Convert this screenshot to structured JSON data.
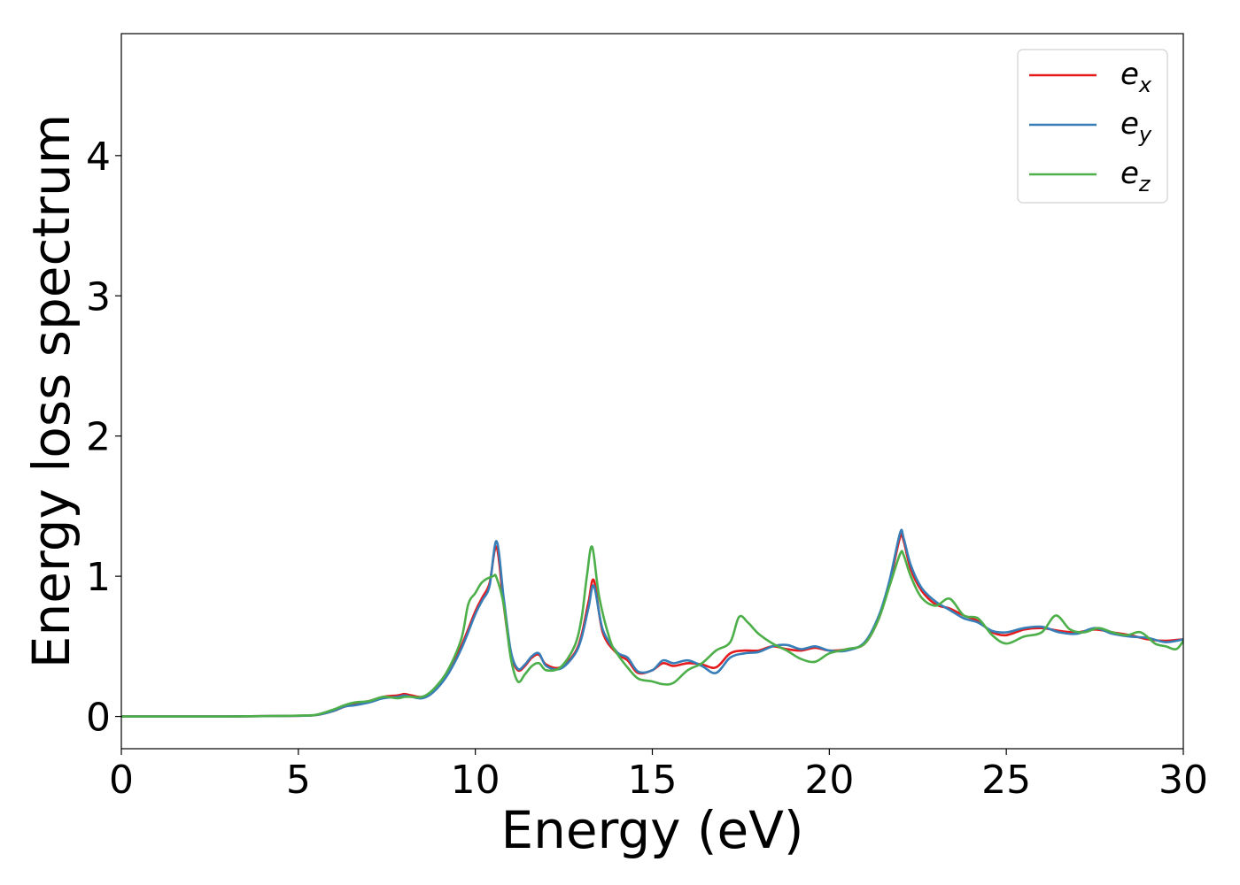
{
  "chart_data": {
    "type": "line",
    "title": "",
    "xlabel": "Energy (eV)",
    "ylabel": "Energy loss spectrum",
    "xlim": [
      0,
      30
    ],
    "ylim": [
      -0.23,
      4.87
    ],
    "xticks": [
      "0",
      "5",
      "10",
      "15",
      "20",
      "25",
      "30"
    ],
    "yticks": [
      "0",
      "1",
      "2",
      "3",
      "4"
    ],
    "grid": false,
    "legend_position": "top-right",
    "series": [
      {
        "name": "e",
        "subscript": "x",
        "color": "#e41a1c",
        "x": [
          0,
          1,
          2,
          3,
          4,
          5,
          5.5,
          6,
          6.3,
          6.6,
          7,
          7.4,
          7.8,
          8.0,
          8.2,
          8.5,
          8.8,
          9.2,
          9.6,
          10.0,
          10.2,
          10.4,
          10.6,
          10.8,
          11.0,
          11.2,
          11.4,
          11.6,
          11.8,
          12.0,
          12.4,
          12.8,
          13.0,
          13.2,
          13.35,
          13.6,
          14.0,
          14.3,
          14.6,
          15.0,
          15.3,
          15.6,
          16.0,
          16.4,
          16.8,
          17.2,
          17.6,
          18.0,
          18.4,
          18.8,
          19.2,
          19.6,
          20.0,
          20.5,
          21.0,
          21.4,
          21.7,
          22.0,
          22.1,
          22.3,
          22.6,
          23.0,
          23.4,
          23.8,
          24.2,
          24.6,
          25.0,
          25.5,
          26.0,
          26.5,
          27.0,
          27.5,
          28.0,
          28.5,
          29.0,
          29.5,
          30.0
        ],
        "y": [
          0,
          0,
          0,
          0,
          0.002,
          0.005,
          0.01,
          0.04,
          0.07,
          0.09,
          0.11,
          0.14,
          0.15,
          0.16,
          0.15,
          0.14,
          0.18,
          0.3,
          0.5,
          0.75,
          0.85,
          0.95,
          1.21,
          0.8,
          0.45,
          0.33,
          0.36,
          0.42,
          0.44,
          0.37,
          0.35,
          0.45,
          0.58,
          0.82,
          0.97,
          0.6,
          0.45,
          0.4,
          0.31,
          0.33,
          0.38,
          0.36,
          0.38,
          0.37,
          0.35,
          0.45,
          0.47,
          0.47,
          0.5,
          0.48,
          0.47,
          0.49,
          0.47,
          0.48,
          0.52,
          0.7,
          0.95,
          1.28,
          1.25,
          1.05,
          0.9,
          0.8,
          0.77,
          0.72,
          0.68,
          0.6,
          0.58,
          0.62,
          0.63,
          0.61,
          0.6,
          0.62,
          0.6,
          0.58,
          0.55,
          0.54,
          0.55
        ]
      },
      {
        "name": "e",
        "subscript": "y",
        "color": "#377eb8",
        "x": [
          0,
          1,
          2,
          3,
          4,
          5,
          5.5,
          6,
          6.3,
          6.6,
          7,
          7.4,
          7.8,
          8.0,
          8.2,
          8.5,
          8.8,
          9.2,
          9.6,
          10.0,
          10.2,
          10.4,
          10.6,
          10.8,
          11.0,
          11.2,
          11.4,
          11.6,
          11.8,
          12.0,
          12.4,
          12.8,
          13.0,
          13.2,
          13.35,
          13.6,
          14.0,
          14.3,
          14.6,
          15.0,
          15.3,
          15.6,
          16.0,
          16.4,
          16.8,
          17.2,
          17.6,
          18.0,
          18.4,
          18.8,
          19.2,
          19.6,
          20.0,
          20.5,
          21.0,
          21.4,
          21.7,
          22.0,
          22.1,
          22.3,
          22.6,
          23.0,
          23.4,
          23.8,
          24.2,
          24.6,
          25.0,
          25.5,
          26.0,
          26.5,
          27.0,
          27.5,
          28.0,
          28.5,
          29.0,
          29.5,
          30.0
        ],
        "y": [
          0,
          0,
          0,
          0,
          0.002,
          0.005,
          0.01,
          0.04,
          0.07,
          0.08,
          0.1,
          0.13,
          0.14,
          0.15,
          0.14,
          0.13,
          0.17,
          0.29,
          0.48,
          0.73,
          0.83,
          0.93,
          1.25,
          0.85,
          0.47,
          0.34,
          0.37,
          0.43,
          0.45,
          0.36,
          0.34,
          0.44,
          0.56,
          0.78,
          0.93,
          0.62,
          0.46,
          0.42,
          0.32,
          0.33,
          0.4,
          0.38,
          0.4,
          0.36,
          0.31,
          0.42,
          0.45,
          0.46,
          0.5,
          0.51,
          0.48,
          0.5,
          0.47,
          0.47,
          0.53,
          0.72,
          0.97,
          1.31,
          1.27,
          1.08,
          0.92,
          0.82,
          0.76,
          0.7,
          0.67,
          0.61,
          0.6,
          0.63,
          0.64,
          0.6,
          0.59,
          0.63,
          0.59,
          0.57,
          0.56,
          0.53,
          0.55
        ]
      },
      {
        "name": "e",
        "subscript": "z",
        "color": "#4daf4a",
        "x": [
          0,
          1,
          2,
          3,
          4,
          5,
          5.5,
          6,
          6.3,
          6.6,
          7,
          7.4,
          7.8,
          8.0,
          8.2,
          8.5,
          8.8,
          9.2,
          9.6,
          9.8,
          10.0,
          10.2,
          10.5,
          10.6,
          10.8,
          11.0,
          11.2,
          11.4,
          11.6,
          11.8,
          12.0,
          12.4,
          12.8,
          13.0,
          13.15,
          13.3,
          13.5,
          13.8,
          14.0,
          14.3,
          14.6,
          15.0,
          15.3,
          15.6,
          16.0,
          16.4,
          16.8,
          17.2,
          17.45,
          17.7,
          18.0,
          18.4,
          18.8,
          19.2,
          19.6,
          20.0,
          20.5,
          21.0,
          21.4,
          21.7,
          22.0,
          22.1,
          22.3,
          22.6,
          23.0,
          23.4,
          23.8,
          24.2,
          24.6,
          25.0,
          25.5,
          26.0,
          26.4,
          26.8,
          27.2,
          27.6,
          28.0,
          28.4,
          28.8,
          29.2,
          29.5,
          29.8,
          30.0
        ],
        "y": [
          0,
          0,
          0,
          0,
          0.002,
          0.006,
          0.012,
          0.05,
          0.08,
          0.1,
          0.11,
          0.14,
          0.13,
          0.14,
          0.14,
          0.14,
          0.19,
          0.32,
          0.55,
          0.8,
          0.88,
          0.96,
          1.0,
          0.99,
          0.8,
          0.42,
          0.25,
          0.3,
          0.36,
          0.38,
          0.33,
          0.35,
          0.5,
          0.7,
          1.0,
          1.21,
          0.85,
          0.55,
          0.45,
          0.35,
          0.27,
          0.25,
          0.23,
          0.24,
          0.33,
          0.38,
          0.47,
          0.53,
          0.71,
          0.67,
          0.59,
          0.52,
          0.47,
          0.41,
          0.39,
          0.45,
          0.48,
          0.52,
          0.7,
          0.93,
          1.16,
          1.15,
          1.0,
          0.85,
          0.79,
          0.84,
          0.72,
          0.7,
          0.58,
          0.52,
          0.57,
          0.6,
          0.72,
          0.62,
          0.6,
          0.63,
          0.6,
          0.58,
          0.6,
          0.52,
          0.5,
          0.48,
          0.54
        ]
      }
    ]
  }
}
